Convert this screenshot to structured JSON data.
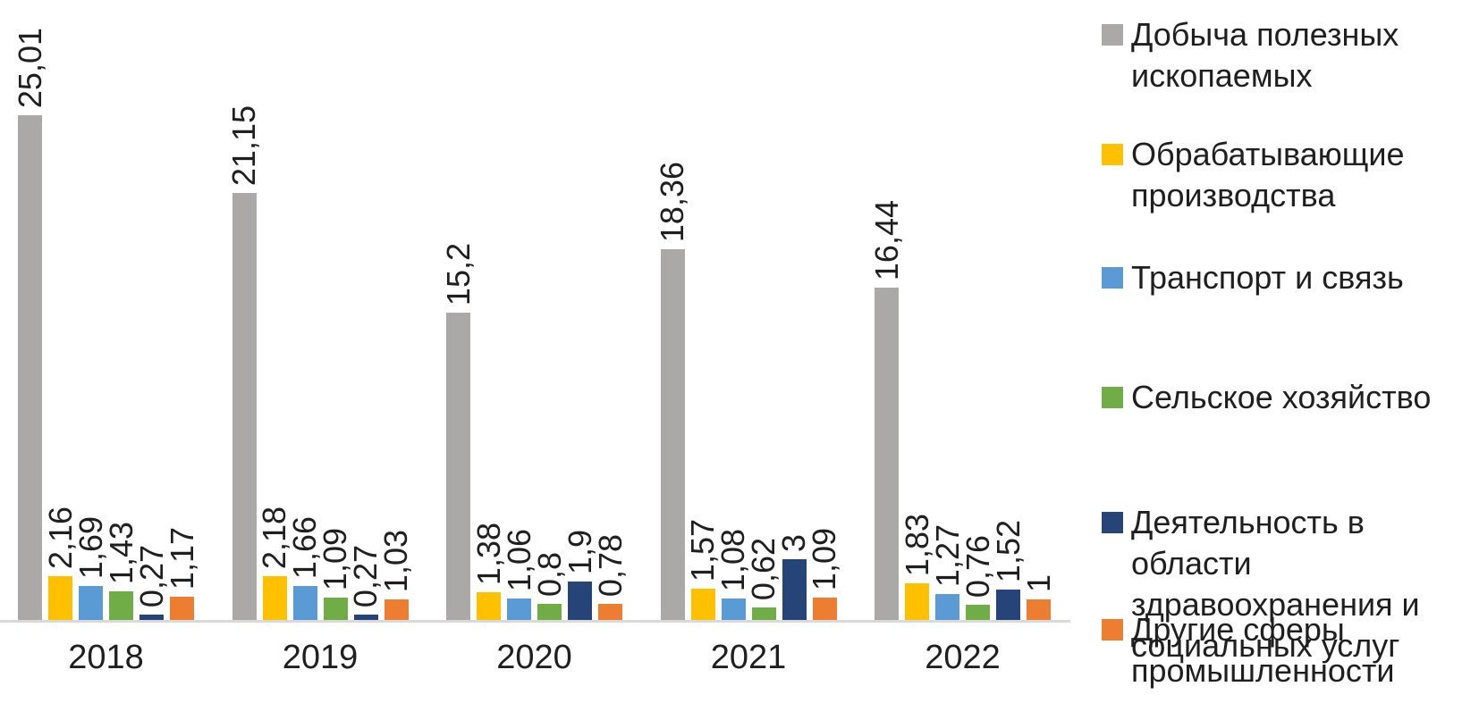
{
  "chart_data": {
    "type": "bar",
    "title": "",
    "xlabel": "",
    "ylabel": "",
    "grid": false,
    "legend_position": "right",
    "value_labels": "rotated-vertical, comma as decimal separator",
    "axis_line_color": "#d9d9d9",
    "text_color": "#1f1f1f",
    "categories": [
      "2018",
      "2019",
      "2020",
      "2021",
      "2022"
    ],
    "series": [
      {
        "name": "Добыча полезных ископаемых",
        "color": "#aba8a8",
        "values": [
          25.01,
          21.15,
          15.2,
          18.36,
          16.44
        ],
        "labels": [
          "25,01",
          "21,15",
          "15,2",
          "18,36",
          "16,44"
        ]
      },
      {
        "name": "Обрабатывающие производства",
        "color": "#ffc000",
        "values": [
          2.16,
          2.18,
          1.38,
          1.57,
          1.83
        ],
        "labels": [
          "2,16",
          "2,18",
          "1,38",
          "1,57",
          "1,83"
        ]
      },
      {
        "name": "Транспорт и связь",
        "color": "#5b9bd5",
        "values": [
          1.69,
          1.66,
          1.06,
          1.08,
          1.27
        ],
        "labels": [
          "1,69",
          "1,66",
          "1,06",
          "1,08",
          "1,27"
        ]
      },
      {
        "name": "Сельское хозяйство",
        "color": "#70ad47",
        "values": [
          1.43,
          1.09,
          0.8,
          0.62,
          0.76
        ],
        "labels": [
          "1,43",
          "1,09",
          "0,8",
          "0,62",
          "0,76"
        ]
      },
      {
        "name": "Деятельность в области здравоохранения и социальных услуг",
        "color": "#264478",
        "values": [
          0.27,
          0.27,
          1.9,
          3,
          1.52
        ],
        "labels": [
          "0,27",
          "0,27",
          "1,9",
          "3",
          "1,52"
        ]
      },
      {
        "name": "Другие сферы промышленности",
        "color": "#ed7d31",
        "values": [
          1.17,
          1.03,
          0.78,
          1.09,
          1
        ],
        "labels": [
          "1,17",
          "1,03",
          "0,78",
          "1,09",
          "1"
        ]
      }
    ]
  }
}
